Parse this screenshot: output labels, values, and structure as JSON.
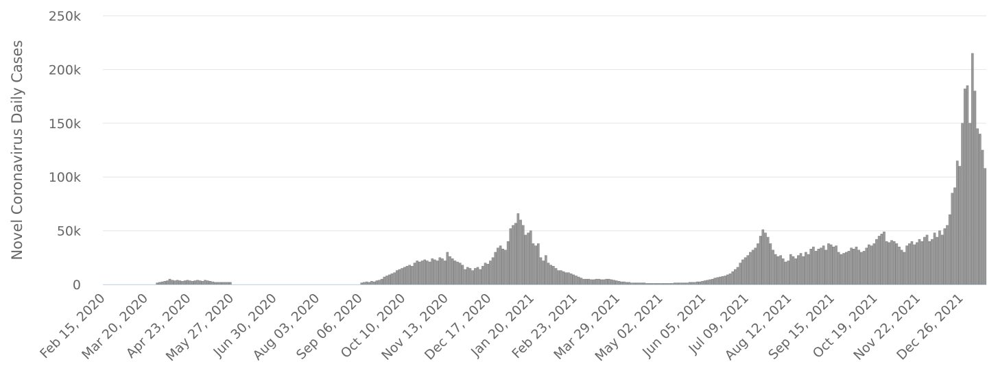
{
  "chart_data": {
    "type": "bar",
    "y_label": "Novel Coronavirus Daily Cases",
    "color": "#9a9a9a",
    "grid": true,
    "ylim": [
      0,
      250000
    ],
    "yticks": [
      {
        "value": 0,
        "label": "0"
      },
      {
        "value": 50000,
        "label": "50k"
      },
      {
        "value": 100000,
        "label": "100k"
      },
      {
        "value": 150000,
        "label": "150k"
      },
      {
        "value": 200000,
        "label": "200k"
      },
      {
        "value": 250000,
        "label": "250k"
      }
    ],
    "categories": [
      "Feb 15, 2020",
      null,
      null,
      null,
      null,
      null,
      null,
      null,
      null,
      null,
      null,
      null,
      null,
      null,
      null,
      null,
      null,
      "Mar 20, 2020",
      null,
      null,
      null,
      null,
      null,
      null,
      null,
      null,
      null,
      null,
      null,
      null,
      null,
      null,
      null,
      null,
      "Apr 23, 2020",
      null,
      null,
      null,
      null,
      null,
      null,
      null,
      null,
      null,
      null,
      null,
      null,
      null,
      null,
      null,
      null,
      "May 27, 2020",
      null,
      null,
      null,
      null,
      null,
      null,
      null,
      null,
      null,
      null,
      null,
      null,
      null,
      null,
      null,
      null,
      "Jun 30, 2020",
      null,
      null,
      null,
      null,
      null,
      null,
      null,
      null,
      null,
      null,
      null,
      null,
      null,
      null,
      null,
      null,
      "Aug 03, 2020",
      null,
      null,
      null,
      null,
      null,
      null,
      null,
      null,
      null,
      null,
      null,
      null,
      null,
      null,
      null,
      null,
      "Sep 06, 2020",
      null,
      null,
      null,
      null,
      null,
      null,
      null,
      null,
      null,
      null,
      null,
      null,
      null,
      null,
      null,
      null,
      "Oct 10, 2020",
      null,
      null,
      null,
      null,
      null,
      null,
      null,
      null,
      null,
      null,
      null,
      null,
      null,
      null,
      null,
      null,
      "Nov 13, 2020",
      null,
      null,
      null,
      null,
      null,
      null,
      null,
      null,
      null,
      null,
      null,
      null,
      null,
      null,
      null,
      null,
      "Dec 17, 2020",
      null,
      null,
      null,
      null,
      null,
      null,
      null,
      null,
      null,
      null,
      null,
      null,
      null,
      null,
      null,
      null,
      "Jan 20, 2021",
      null,
      null,
      null,
      null,
      null,
      null,
      null,
      null,
      null,
      null,
      null,
      null,
      null,
      null,
      null,
      null,
      "Feb 23, 2021",
      null,
      null,
      null,
      null,
      null,
      null,
      null,
      null,
      null,
      null,
      null,
      null,
      null,
      null,
      null,
      null,
      "Mar 29, 2021",
      null,
      null,
      null,
      null,
      null,
      null,
      null,
      null,
      null,
      null,
      null,
      null,
      null,
      null,
      null,
      null,
      "May 02, 2021",
      null,
      null,
      null,
      null,
      null,
      null,
      null,
      null,
      null,
      null,
      null,
      null,
      null,
      null,
      null,
      null,
      "Jun 05, 2021",
      null,
      null,
      null,
      null,
      null,
      null,
      null,
      null,
      null,
      null,
      null,
      null,
      null,
      null,
      null,
      null,
      "Jul 09, 2021",
      null,
      null,
      null,
      null,
      null,
      null,
      null,
      null,
      null,
      null,
      null,
      null,
      null,
      null,
      null,
      null,
      "Aug 12, 2021",
      null,
      null,
      null,
      null,
      null,
      null,
      null,
      null,
      null,
      null,
      null,
      null,
      null,
      null,
      null,
      null,
      "Sep 15, 2021",
      null,
      null,
      null,
      null,
      null,
      null,
      null,
      null,
      null,
      null,
      null,
      null,
      null,
      null,
      null,
      null,
      "Oct 19, 2021",
      null,
      null,
      null,
      null,
      null,
      null,
      null,
      null,
      null,
      null,
      null,
      null,
      null,
      null,
      null,
      null,
      "Nov 22, 2021",
      null,
      null,
      null,
      null,
      null,
      null,
      null,
      null,
      null,
      null,
      null,
      null,
      null,
      null,
      null,
      null,
      "Dec 26, 2021",
      null,
      null,
      null,
      null,
      null,
      null,
      null,
      null,
      null
    ],
    "values": [
      0,
      0,
      0,
      0,
      0,
      0,
      0,
      0,
      0,
      0,
      0,
      0,
      0,
      0,
      0,
      0,
      0,
      0,
      0,
      0,
      0,
      1500,
      2000,
      2500,
      3000,
      3500,
      5000,
      4000,
      3500,
      4000,
      3500,
      3000,
      3500,
      4000,
      3500,
      3000,
      3500,
      4000,
      3500,
      3000,
      4000,
      3500,
      3000,
      2500,
      2000,
      2000,
      2000,
      2000,
      2000,
      2000,
      2000,
      0,
      0,
      0,
      0,
      0,
      0,
      0,
      0,
      0,
      0,
      0,
      0,
      0,
      0,
      0,
      0,
      0,
      0,
      0,
      0,
      0,
      0,
      0,
      0,
      0,
      0,
      0,
      0,
      0,
      0,
      0,
      0,
      0,
      0,
      0,
      0,
      0,
      0,
      0,
      0,
      0,
      0,
      0,
      0,
      0,
      0,
      0,
      0,
      0,
      0,
      0,
      1500,
      2000,
      2500,
      2000,
      3000,
      2500,
      3500,
      4000,
      5000,
      7000,
      8000,
      9000,
      10000,
      11000,
      13000,
      14000,
      15000,
      16000,
      17000,
      18000,
      17000,
      20000,
      22000,
      21000,
      22000,
      23000,
      22000,
      21000,
      24000,
      23000,
      22000,
      25000,
      24000,
      22000,
      30000,
      26000,
      24000,
      22000,
      21000,
      20000,
      18000,
      14000,
      16000,
      15000,
      13000,
      15000,
      16000,
      14000,
      17000,
      20000,
      19000,
      22000,
      25000,
      30000,
      34000,
      36000,
      33000,
      32000,
      40000,
      52000,
      55000,
      57000,
      66000,
      60000,
      55000,
      46000,
      48000,
      50000,
      38000,
      36000,
      38000,
      25000,
      22000,
      27000,
      20000,
      18000,
      17000,
      15000,
      13000,
      13000,
      12000,
      11000,
      11000,
      10000,
      9000,
      8000,
      7000,
      6000,
      5000,
      5000,
      5000,
      4500,
      4500,
      5000,
      5000,
      4500,
      4500,
      5000,
      5000,
      4500,
      4000,
      3500,
      3000,
      2500,
      2500,
      2000,
      2000,
      1500,
      1500,
      1500,
      1500,
      1500,
      1500,
      1000,
      1000,
      1000,
      1000,
      1000,
      1000,
      1000,
      1000,
      1000,
      1000,
      1000,
      1500,
      1500,
      1500,
      1500,
      1500,
      1500,
      2000,
      2000,
      2000,
      2500,
      2500,
      3000,
      3500,
      4000,
      4500,
      5000,
      6000,
      6500,
      7000,
      7500,
      8000,
      9000,
      10000,
      12000,
      14000,
      16000,
      20000,
      23000,
      25000,
      27000,
      30000,
      32000,
      34000,
      38000,
      45000,
      51000,
      48000,
      44000,
      38000,
      32000,
      28000,
      26000,
      27000,
      24000,
      21000,
      22000,
      28000,
      26000,
      24000,
      27000,
      29000,
      26000,
      30000,
      28000,
      33000,
      35000,
      31000,
      33000,
      34000,
      36000,
      32000,
      38000,
      37000,
      35000,
      36000,
      30000,
      28000,
      29000,
      30000,
      31000,
      34000,
      33000,
      35000,
      32000,
      30000,
      31000,
      34000,
      37000,
      36000,
      38000,
      42000,
      45000,
      47000,
      49000,
      40000,
      39000,
      41000,
      40000,
      38000,
      35000,
      32000,
      30000,
      36000,
      38000,
      40000,
      37000,
      39000,
      42000,
      40000,
      44000,
      46000,
      40000,
      42000,
      48000,
      44000,
      50000,
      46000,
      52000,
      55000,
      65000,
      85000,
      90000,
      115000,
      110000,
      150000,
      182000,
      185000,
      150000,
      215000,
      180000,
      145000,
      140000,
      125000,
      108000
    ]
  }
}
